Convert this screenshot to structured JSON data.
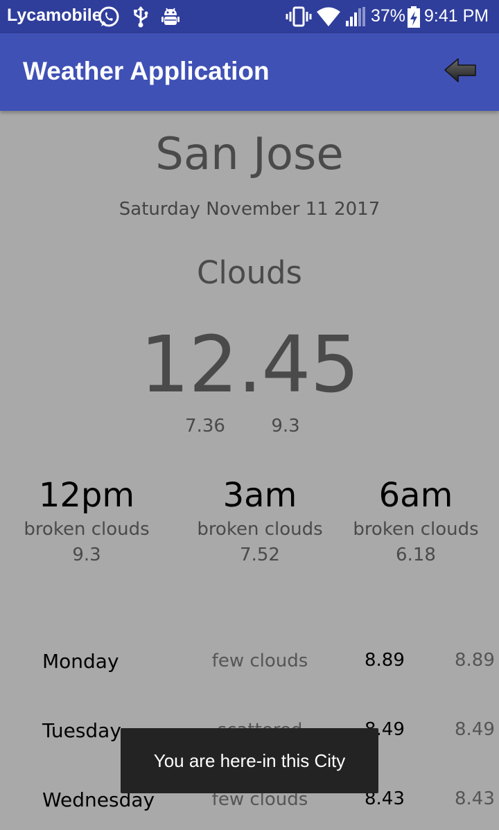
{
  "status_bar": {
    "carrier": "Lycamobile",
    "battery": "37%",
    "time": "9:41 PM",
    "icons": [
      "whatsapp-icon",
      "usb-icon",
      "android-debug-icon",
      "vibrate-icon",
      "wifi-icon",
      "signal-icon",
      "battery-charging-icon"
    ]
  },
  "app_bar": {
    "title": "Weather Application",
    "back_icon": "back-arrow-icon"
  },
  "current": {
    "city": "San Jose",
    "date": "Saturday November 11 2017",
    "condition": "Clouds",
    "temp": "12.45",
    "temp_min": "7.36",
    "temp_max": "9.3"
  },
  "hourly": [
    {
      "time": "12pm",
      "desc": "broken clouds",
      "temp": "9.3"
    },
    {
      "time": "3am",
      "desc": "broken clouds",
      "temp": "7.52"
    },
    {
      "time": "6am",
      "desc": "broken clouds",
      "temp": "6.18"
    }
  ],
  "daily": [
    {
      "day": "Monday",
      "desc": "few clouds",
      "max": "8.89",
      "min": "8.89"
    },
    {
      "day": "Tuesday",
      "desc": "scattered clouds",
      "max": "8.49",
      "min": "8.49"
    },
    {
      "day": "Wednesday",
      "desc": "few clouds",
      "max": "8.43",
      "min": "8.43"
    }
  ],
  "toast": {
    "message": "You are here-in this City"
  },
  "colors": {
    "status_bar": "#2f3d9b",
    "app_bar": "#3f51b5",
    "background": "#a9a9a9",
    "toast": "#232323"
  }
}
